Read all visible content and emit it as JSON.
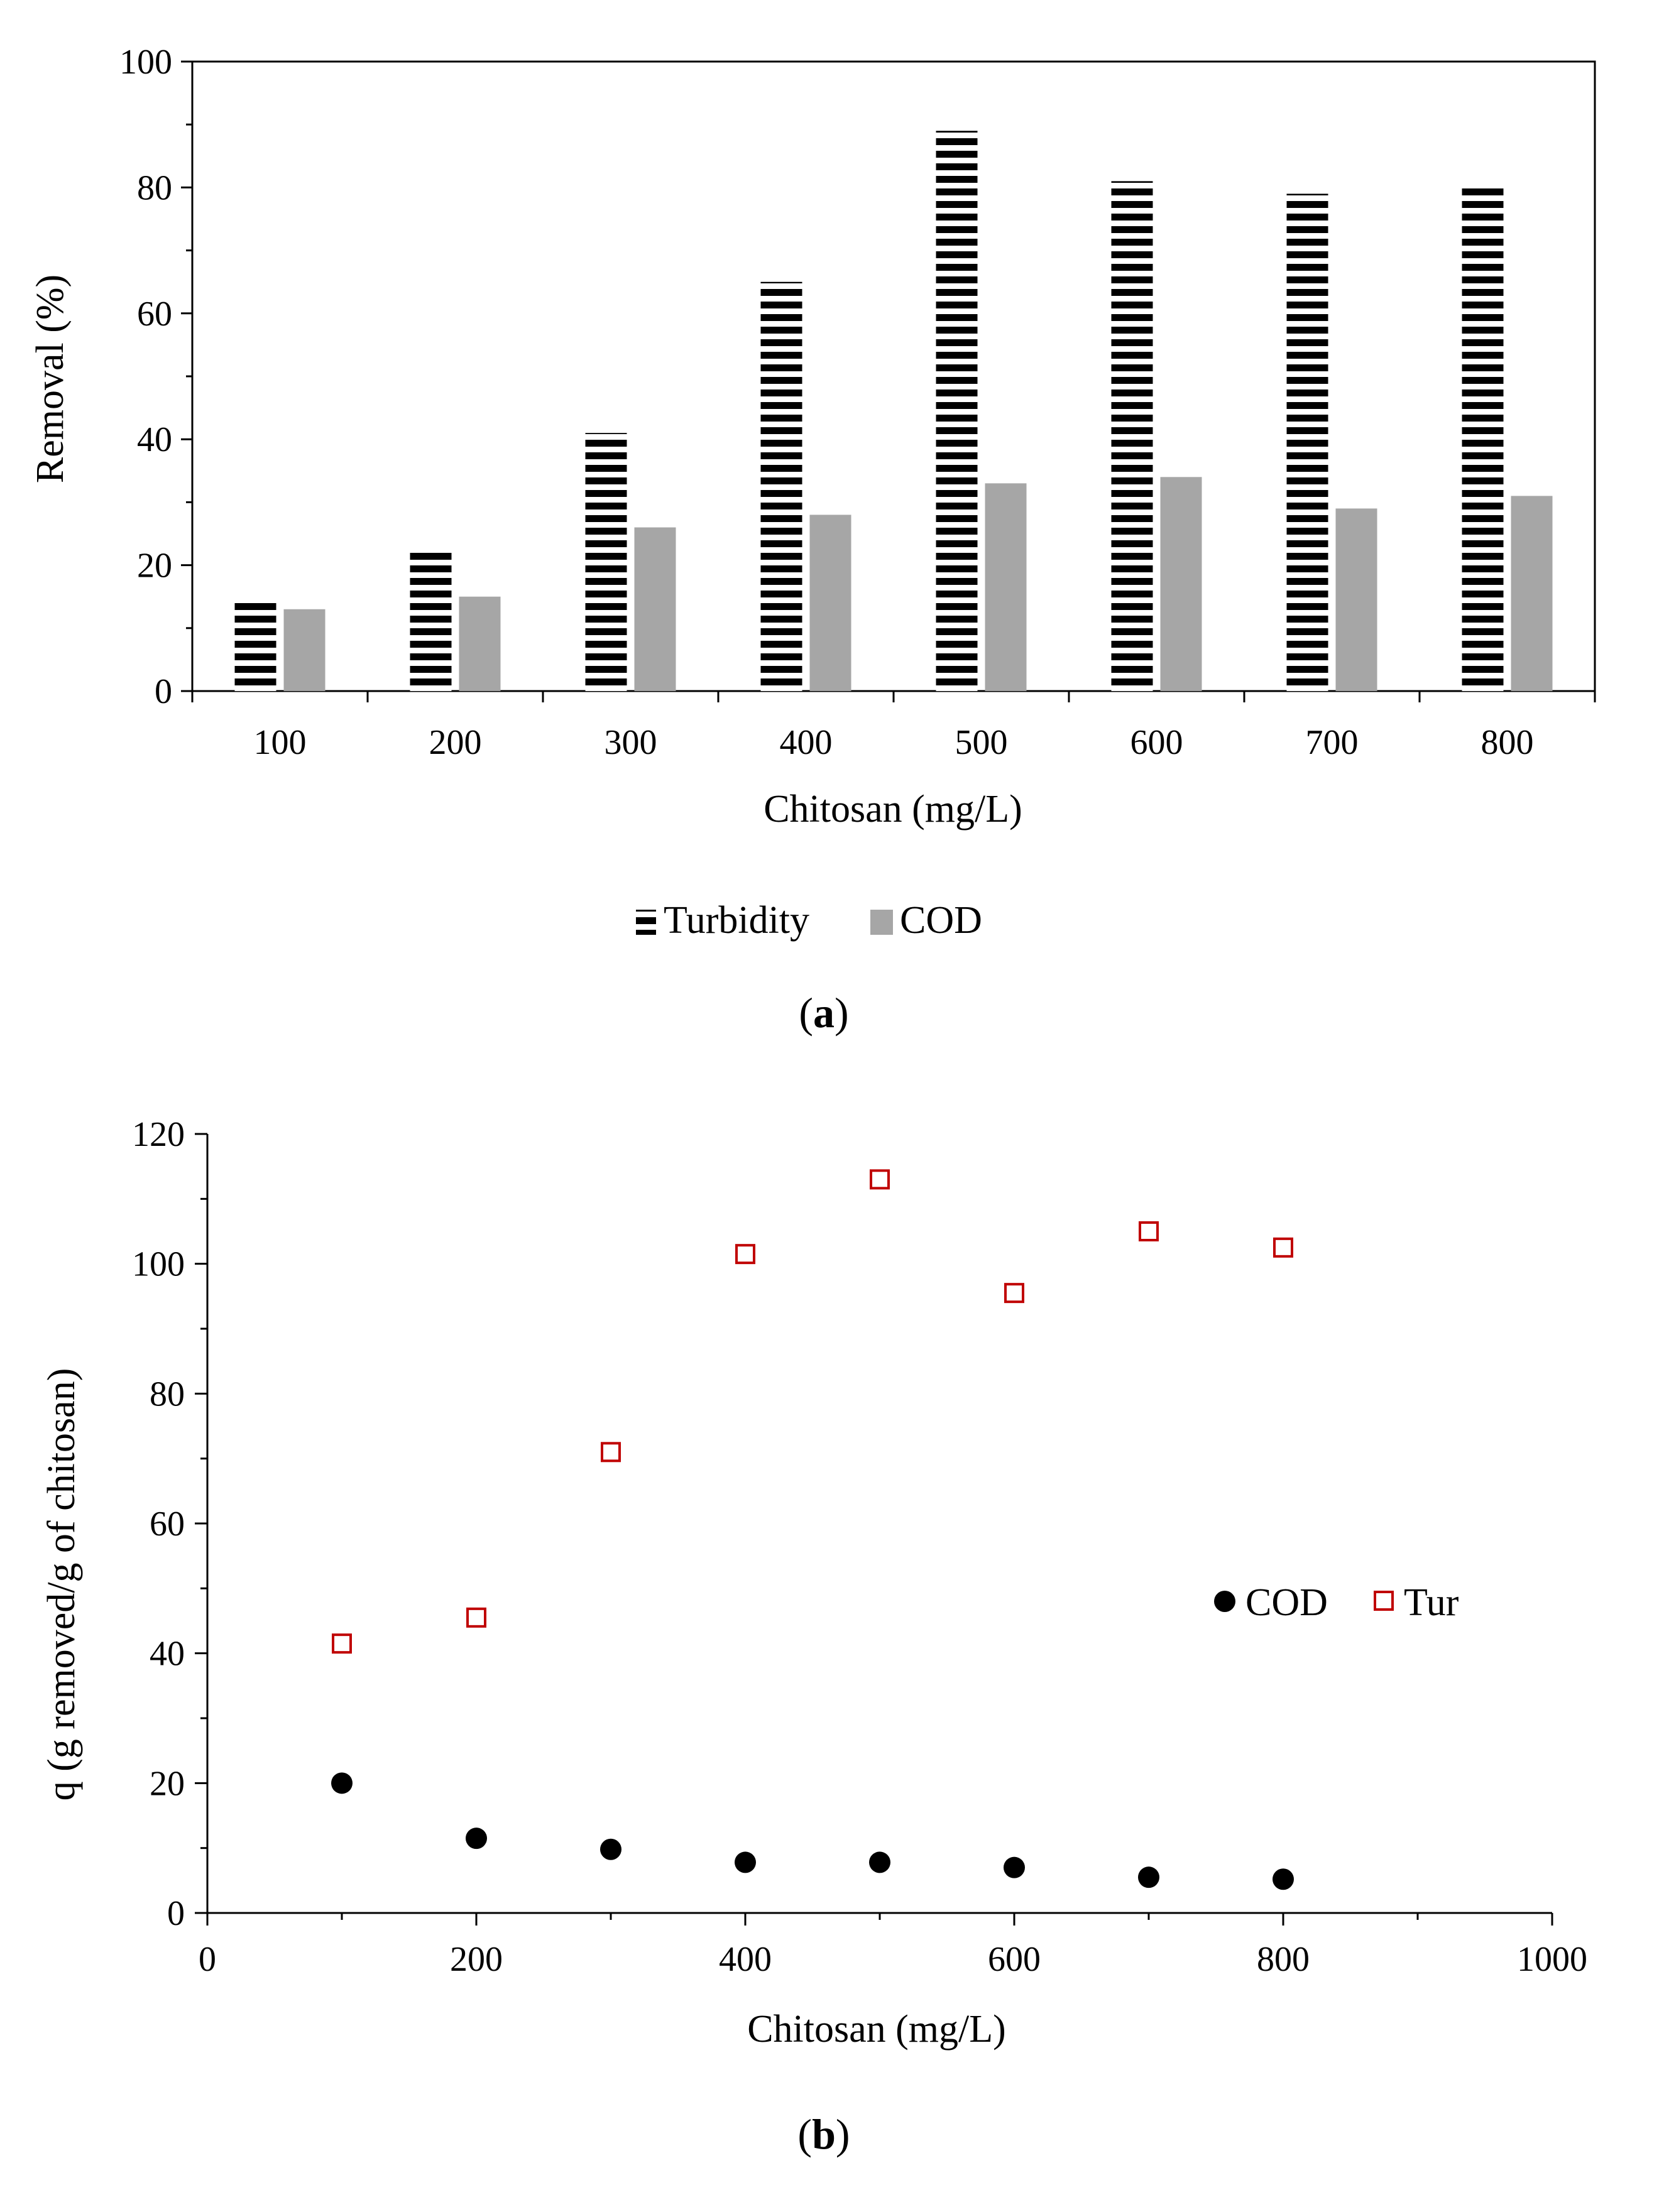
{
  "chart_data": [
    {
      "type": "bar",
      "panel_label": "a",
      "categories": [
        "100",
        "200",
        "300",
        "400",
        "500",
        "600",
        "700",
        "800"
      ],
      "series": [
        {
          "name": "Turbidity",
          "values": [
            14,
            22,
            41,
            65,
            89,
            81,
            79,
            80
          ],
          "color": "#000000",
          "pattern": "horizontal-stripes"
        },
        {
          "name": "COD",
          "values": [
            13,
            15,
            26,
            28,
            33,
            34,
            29,
            31
          ],
          "color": "#a6a6a6"
        }
      ],
      "title": "",
      "xlabel": "Chitosan (mg/L)",
      "ylabel": "Removal (%)",
      "ylim": [
        0,
        100
      ],
      "yticks": [
        "0",
        "20",
        "40",
        "60",
        "80",
        "100"
      ],
      "legend_position": "bottom-center"
    },
    {
      "type": "scatter",
      "panel_label": "b",
      "series": [
        {
          "name": "COD",
          "marker": "filled-circle",
          "color": "#000000",
          "x": [
            100,
            200,
            300,
            400,
            500,
            600,
            700,
            800
          ],
          "y": [
            20,
            11.5,
            9.8,
            7.8,
            7.8,
            7.0,
            5.5,
            5.2
          ]
        },
        {
          "name": "Tur",
          "marker": "open-square",
          "color": "#c00000",
          "x": [
            100,
            200,
            300,
            400,
            500,
            600,
            700,
            800
          ],
          "y": [
            41.5,
            45.5,
            71,
            101.5,
            113,
            95.5,
            105,
            102.5
          ]
        }
      ],
      "title": "",
      "xlabel": "Chitosan (mg/L)",
      "ylabel": "q (g removed/g of chitosan)",
      "xlim": [
        0,
        1000
      ],
      "ylim": [
        0,
        120
      ],
      "xticks": [
        "0",
        "200",
        "400",
        "600",
        "800",
        "1000"
      ],
      "yticks": [
        "0",
        "20",
        "40",
        "60",
        "80",
        "100",
        "120"
      ],
      "legend_position": "center-right"
    }
  ]
}
